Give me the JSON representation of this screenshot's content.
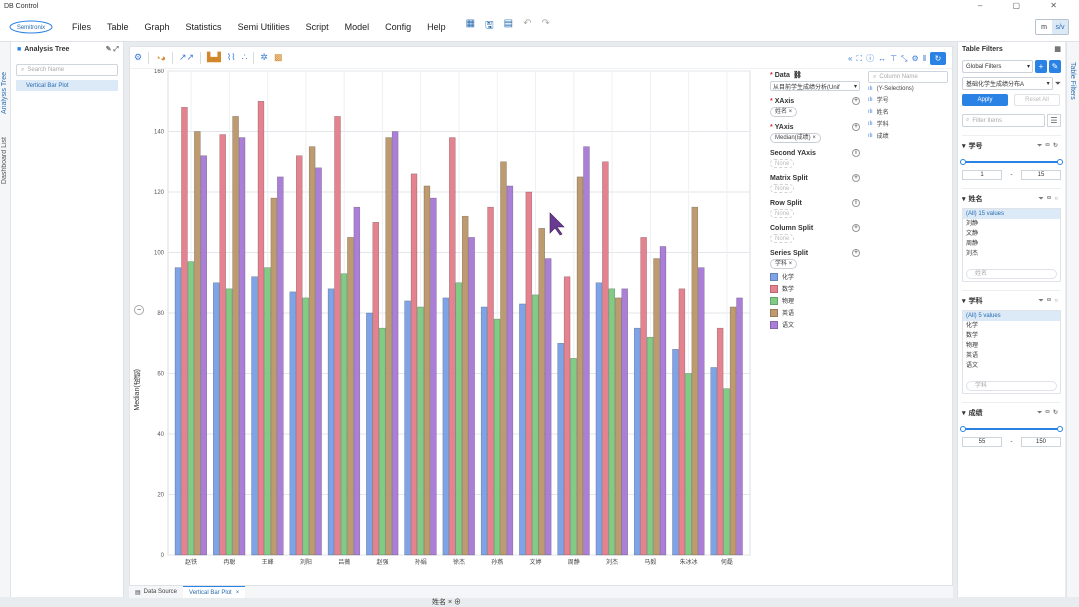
{
  "window": {
    "title": "DB Control"
  },
  "menu": {
    "logo": "Semitronix",
    "items": [
      "Files",
      "Table",
      "Graph",
      "Statistics",
      "Semi Utilities",
      "Script",
      "Model",
      "Config",
      "Help"
    ],
    "toggle": [
      "m",
      "s/v"
    ]
  },
  "left": {
    "vertical_tabs": [
      "Analysis Tree",
      "Dashboard List"
    ],
    "title": "Analysis Tree",
    "search_placeholder": "Search Name",
    "tree_items": [
      "Vertical Bar Plot"
    ]
  },
  "chart_data": {
    "type": "bar",
    "ylabel": "Median(成绩)",
    "xlabel": "姓名",
    "ylim": [
      0,
      160
    ],
    "yticks": [
      0,
      20,
      40,
      60,
      80,
      100,
      120,
      140,
      160
    ],
    "categories": [
      "赵铁",
      "冉聪",
      "王峰",
      "刘阳",
      "吕薇",
      "赵强",
      "孙娟",
      "徐杰",
      "孙燕",
      "文婷",
      "周静",
      "刘杰",
      "马毅",
      "朱冰冰",
      "何磊"
    ],
    "series": [
      {
        "name": "化学",
        "color": "#7ea3e6",
        "values": [
          95,
          90,
          92,
          87,
          88,
          80,
          84,
          85,
          82,
          83,
          70,
          90,
          75,
          68,
          62
        ]
      },
      {
        "name": "数学",
        "color": "#e5828f",
        "values": [
          148,
          139,
          150,
          132,
          145,
          110,
          126,
          138,
          115,
          120,
          92,
          130,
          105,
          88,
          75
        ]
      },
      {
        "name": "物理",
        "color": "#80cc85",
        "values": [
          97,
          88,
          95,
          85,
          93,
          75,
          82,
          90,
          78,
          86,
          65,
          88,
          72,
          60,
          55
        ]
      },
      {
        "name": "英语",
        "color": "#bd9a6f",
        "values": [
          140,
          145,
          118,
          135,
          105,
          138,
          122,
          112,
          130,
          108,
          125,
          85,
          98,
          115,
          82
        ]
      },
      {
        "name": "语文",
        "color": "#ab7fd8",
        "values": [
          132,
          138,
          125,
          128,
          115,
          140,
          118,
          105,
          122,
          98,
          135,
          88,
          102,
          95,
          85
        ]
      }
    ],
    "legend_title": "学科",
    "grid": true
  },
  "config": {
    "data_label": "Data",
    "data_value": "从目前学生成绩分析(Unif",
    "xaxis_label": "XAxis",
    "xaxis_value": "姓名",
    "yaxis_label": "YAxis",
    "yaxis_value": "Median(成绩)",
    "second_yaxis_label": "Second YAxis",
    "matrix_split_label": "Matrix Split",
    "row_split_label": "Row Split",
    "column_split_label": "Column Split",
    "series_split_label": "Series Split",
    "series_split_value": "学科",
    "none": "None"
  },
  "fields": {
    "search_placeholder": "Column Name",
    "items": [
      "(Y-Selections)",
      "学号",
      "姓名",
      "学科",
      "成绩"
    ]
  },
  "filters": {
    "title": "Table Filters",
    "vertical_tab": "Table Filters",
    "scope": "Global Filters",
    "dataset": "基础化学生成绩分布A",
    "apply": "Apply",
    "reset": "Reset All",
    "search_placeholder": "Filter Items",
    "xuehao": {
      "label": "学号",
      "min": "1",
      "max": "15"
    },
    "xingming": {
      "label": "姓名",
      "all": "(All) 15 values",
      "values": [
        "刘静",
        "文静",
        "周静",
        "刘杰",
        "张伟",
        "孙燕"
      ],
      "search": "姓名"
    },
    "xueke": {
      "label": "学科",
      "all": "(All) 5 values",
      "values": [
        "化学",
        "数学",
        "物理",
        "英语",
        "语文"
      ],
      "search": "学科"
    },
    "chengji": {
      "label": "成绩",
      "min": "55",
      "max": "150"
    }
  },
  "bottom_tabs": [
    "Data Source",
    "Vertical Bar Plot"
  ]
}
